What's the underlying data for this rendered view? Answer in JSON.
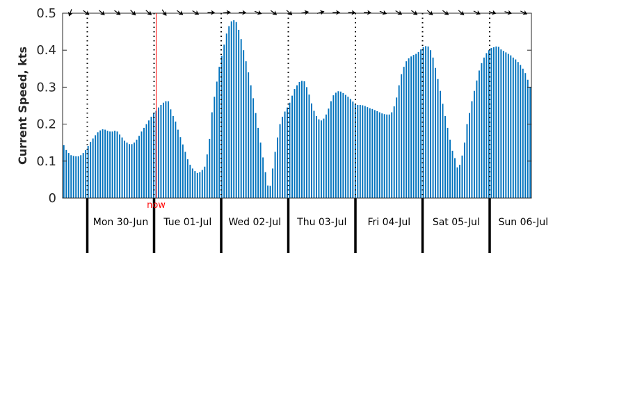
{
  "chart_data": {
    "type": "bar",
    "ylabel": "Current Speed, kts",
    "ylim": [
      0,
      0.5
    ],
    "yticks": [
      "0",
      "0.1",
      "0.2",
      "0.3",
      "0.4",
      "0.5"
    ],
    "bar_color": "#0072bd",
    "now_color": "#ff0000",
    "now_label": "now",
    "now_index": 38,
    "day_labels": [
      "Mon 30-Jun",
      "Tue 01-Jul",
      "Wed 02-Jul",
      "Thu 03-Jul",
      "Fri 04-Jul",
      "Sat 05-Jul",
      "Sun 06-Jul"
    ],
    "values": [
      0.143,
      0.13,
      0.122,
      0.116,
      0.114,
      0.113,
      0.113,
      0.116,
      0.122,
      0.13,
      0.141,
      0.152,
      0.161,
      0.17,
      0.178,
      0.183,
      0.186,
      0.185,
      0.182,
      0.18,
      0.18,
      0.182,
      0.18,
      0.172,
      0.164,
      0.155,
      0.15,
      0.146,
      0.146,
      0.15,
      0.158,
      0.168,
      0.18,
      0.19,
      0.2,
      0.21,
      0.22,
      0.23,
      0.236,
      0.245,
      0.252,
      0.258,
      0.262,
      0.262,
      0.24,
      0.222,
      0.207,
      0.185,
      0.165,
      0.145,
      0.125,
      0.105,
      0.09,
      0.08,
      0.073,
      0.068,
      0.07,
      0.076,
      0.085,
      0.118,
      0.16,
      0.232,
      0.274,
      0.315,
      0.355,
      0.385,
      0.415,
      0.445,
      0.465,
      0.478,
      0.481,
      0.476,
      0.455,
      0.43,
      0.4,
      0.37,
      0.34,
      0.305,
      0.27,
      0.23,
      0.19,
      0.15,
      0.11,
      0.07,
      0.034,
      0.033,
      0.08,
      0.125,
      0.164,
      0.2,
      0.22,
      0.234,
      0.245,
      0.258,
      0.277,
      0.295,
      0.305,
      0.314,
      0.317,
      0.316,
      0.3,
      0.28,
      0.256,
      0.236,
      0.222,
      0.213,
      0.21,
      0.215,
      0.226,
      0.242,
      0.262,
      0.278,
      0.285,
      0.289,
      0.288,
      0.284,
      0.279,
      0.274,
      0.268,
      0.261,
      0.255,
      0.252,
      0.252,
      0.251,
      0.249,
      0.246,
      0.243,
      0.241,
      0.238,
      0.235,
      0.232,
      0.229,
      0.227,
      0.226,
      0.226,
      0.232,
      0.248,
      0.272,
      0.305,
      0.335,
      0.355,
      0.37,
      0.378,
      0.383,
      0.387,
      0.39,
      0.395,
      0.402,
      0.408,
      0.411,
      0.41,
      0.4,
      0.38,
      0.352,
      0.322,
      0.29,
      0.255,
      0.222,
      0.19,
      0.158,
      0.128,
      0.108,
      0.083,
      0.09,
      0.115,
      0.15,
      0.2,
      0.23,
      0.262,
      0.29,
      0.318,
      0.345,
      0.365,
      0.38,
      0.392,
      0.4,
      0.406,
      0.408,
      0.41,
      0.409,
      0.402,
      0.398,
      0.394,
      0.39,
      0.386,
      0.38,
      0.375,
      0.368,
      0.36,
      0.35,
      0.338,
      0.32,
      0.3
    ],
    "direction_arrows_deg": [
      200,
      125,
      130,
      125,
      135,
      130,
      145,
      125,
      120,
      95,
      85,
      95,
      110,
      125,
      130,
      80,
      75,
      90,
      95,
      95,
      110,
      120,
      125,
      130,
      125,
      130,
      115,
      105,
      105,
      115
    ]
  }
}
